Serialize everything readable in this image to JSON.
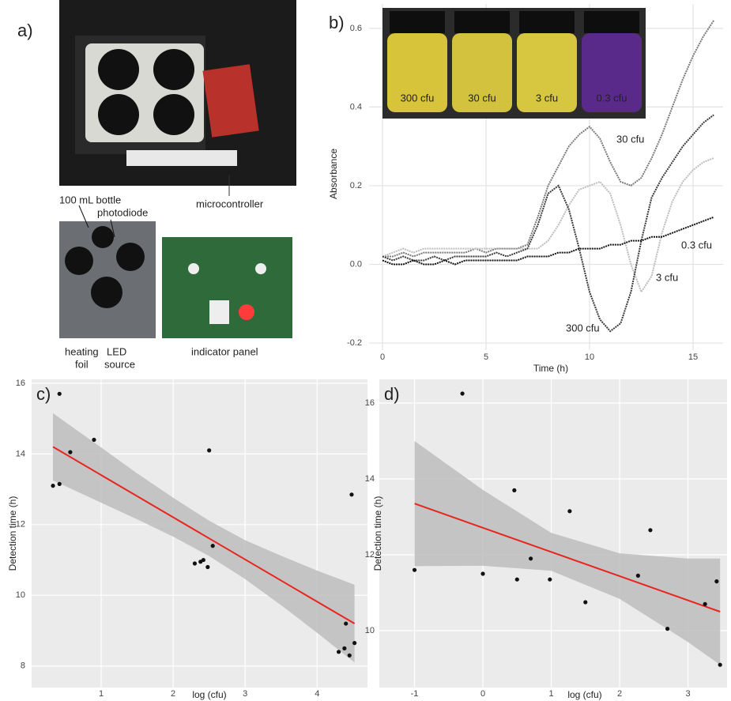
{
  "panel_a": {
    "label": "a)",
    "photo_labels": [
      "microcontroller",
      "100 mL bottle",
      "photodiode",
      "heating",
      "foil",
      "LED",
      "source",
      "indicator panel"
    ]
  },
  "chart_data": [
    {
      "type": "line",
      "panel": "b)",
      "inset_labels": [
        "300 cfu",
        "30 cfu",
        "3 cfu",
        "0.3 cfu"
      ],
      "xlabel": "Time (h)",
      "ylabel": "Absorbance",
      "x": [
        0,
        0.5,
        1,
        1.5,
        2,
        2.5,
        3,
        3.5,
        4,
        4.5,
        5,
        5.5,
        6,
        6.5,
        7,
        7.5,
        8,
        8.5,
        9,
        9.5,
        10,
        10.5,
        11,
        11.5,
        12,
        12.5,
        13,
        13.5,
        14,
        14.5,
        15,
        15.5,
        16
      ],
      "series": [
        {
          "name": "30 cfu",
          "color": "#7a7a7a",
          "values": [
            0.02,
            0.02,
            0.03,
            0.02,
            0.03,
            0.03,
            0.03,
            0.03,
            0.03,
            0.04,
            0.03,
            0.04,
            0.04,
            0.04,
            0.05,
            0.12,
            0.2,
            0.25,
            0.3,
            0.33,
            0.35,
            0.32,
            0.26,
            0.21,
            0.2,
            0.22,
            0.27,
            0.33,
            0.4,
            0.47,
            0.53,
            0.58,
            0.62
          ]
        },
        {
          "name": "3 cfu",
          "color": "#bdbdbd",
          "values": [
            0.02,
            0.03,
            0.04,
            0.03,
            0.04,
            0.04,
            0.04,
            0.04,
            0.04,
            0.04,
            0.04,
            0.04,
            0.04,
            0.04,
            0.04,
            0.04,
            0.06,
            0.1,
            0.15,
            0.19,
            0.2,
            0.21,
            0.18,
            0.1,
            0.0,
            -0.07,
            -0.03,
            0.08,
            0.16,
            0.21,
            0.24,
            0.26,
            0.27
          ]
        },
        {
          "name": "300 cfu",
          "color": "#3a3a3a",
          "values": [
            0.02,
            0.01,
            0.02,
            0.01,
            0.01,
            0.02,
            0.01,
            0.02,
            0.02,
            0.02,
            0.02,
            0.03,
            0.02,
            0.03,
            0.04,
            0.1,
            0.18,
            0.2,
            0.14,
            0.04,
            -0.07,
            -0.14,
            -0.17,
            -0.15,
            -0.07,
            0.06,
            0.17,
            0.22,
            0.26,
            0.3,
            0.33,
            0.36,
            0.38
          ]
        },
        {
          "name": "0.3 cfu",
          "color": "#111111",
          "values": [
            0.01,
            0.0,
            0.0,
            0.01,
            0.0,
            0.0,
            0.01,
            0.0,
            0.01,
            0.01,
            0.01,
            0.01,
            0.01,
            0.01,
            0.02,
            0.02,
            0.02,
            0.03,
            0.03,
            0.04,
            0.04,
            0.04,
            0.05,
            0.05,
            0.06,
            0.06,
            0.07,
            0.07,
            0.08,
            0.09,
            0.1,
            0.11,
            0.12
          ]
        }
      ],
      "xlim": [
        -0.65,
        16.45
      ],
      "ylim": [
        -0.218,
        0.662
      ],
      "xticks": [
        0,
        5,
        10,
        15
      ],
      "yticks": [
        -0.2,
        {
          "value": 0,
          "label": "0.0"
        },
        0.2,
        0.4,
        0.6
      ],
      "grid": true
    },
    {
      "type": "scatter",
      "panel": "c)",
      "xlabel": "log (cfu)",
      "ylabel": "Detection time (h)",
      "x": [
        0.33,
        0.42,
        0.42,
        0.57,
        0.9,
        2.3,
        2.38,
        2.42,
        2.48,
        2.5,
        2.55,
        4.3,
        4.38,
        4.4,
        4.45,
        4.48,
        4.52
      ],
      "y": [
        13.1,
        15.7,
        13.15,
        14.05,
        14.4,
        10.9,
        10.95,
        11.0,
        10.8,
        14.1,
        11.4,
        8.4,
        8.5,
        9.2,
        8.3,
        12.85,
        8.65
      ],
      "color": "#111111",
      "fit": {
        "x": [
          0.33,
          4.52
        ],
        "y": [
          14.2,
          9.2
        ],
        "color": "#e8251f"
      },
      "band": {
        "x": [
          0.33,
          1,
          1.5,
          2,
          2.5,
          3,
          3.5,
          4,
          4.52
        ],
        "lower": [
          13.25,
          12.62,
          12.15,
          11.66,
          11.11,
          10.46,
          9.72,
          8.94,
          8.1
        ],
        "upper": [
          15.15,
          14.18,
          13.45,
          12.76,
          12.11,
          11.56,
          11.12,
          10.7,
          10.3
        ],
        "color": "#bdbdbd"
      },
      "xlim": [
        0.033,
        4.7
      ],
      "ylim": [
        7.39,
        16.11
      ],
      "xticks": [
        1,
        2,
        3,
        4
      ],
      "yticks": [
        8,
        10,
        12,
        14,
        16
      ],
      "grid": true
    },
    {
      "type": "scatter",
      "panel": "d)",
      "xlabel": "log (cfu)",
      "ylabel": "Detection time (h)",
      "x": [
        -1,
        -0.3,
        0,
        0.46,
        0.5,
        0.7,
        0.98,
        1.27,
        1.5,
        2.27,
        2.45,
        2.7,
        3.25,
        3.42,
        3.47
      ],
      "y": [
        11.6,
        16.25,
        11.5,
        13.7,
        11.35,
        11.9,
        11.35,
        13.15,
        10.75,
        11.45,
        12.65,
        10.05,
        10.7,
        11.3,
        9.1
      ],
      "color": "#111111",
      "fit": {
        "x": [
          -1,
          3.47
        ],
        "y": [
          13.35,
          10.5
        ],
        "color": "#e8251f"
      },
      "band": {
        "x": [
          -1,
          0,
          1,
          2,
          3,
          3.47
        ],
        "lower": [
          11.7,
          11.71,
          11.58,
          10.84,
          9.7,
          9.1
        ],
        "upper": [
          15.0,
          13.71,
          12.58,
          12.04,
          11.9,
          11.9
        ],
        "color": "#bdbdbd"
      },
      "xlim": [
        -1.515,
        3.572
      ],
      "ylim": [
        8.5,
        16.625
      ],
      "xticks": [
        -1,
        0,
        1,
        2,
        3
      ],
      "yticks": [
        10,
        12,
        14,
        16
      ],
      "grid": true
    }
  ]
}
